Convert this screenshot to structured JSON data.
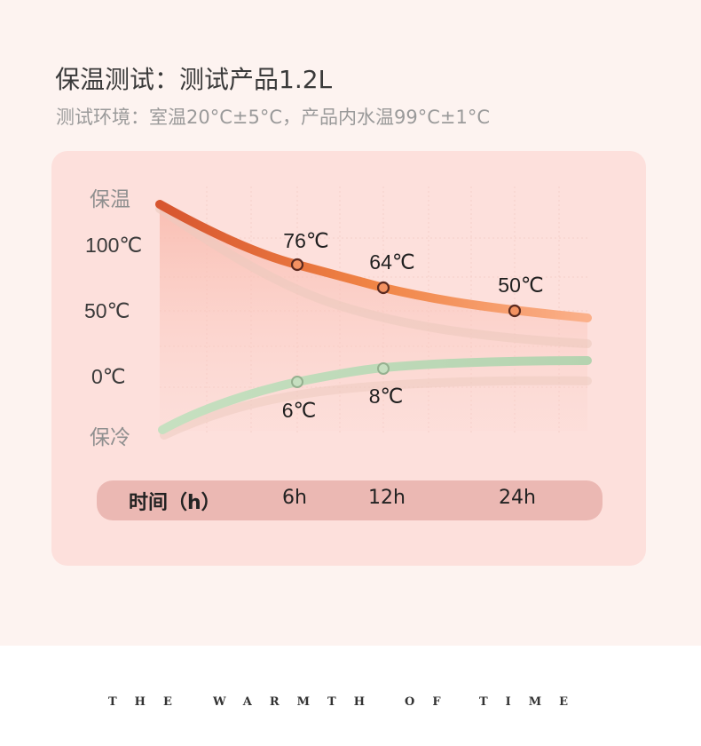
{
  "title": "保温测试：测试产品1.2L",
  "subtitle": "测试环境：室温20°C±5°C，产品内水温99°C±1°C",
  "chart_data": {
    "type": "line",
    "x": [
      0,
      6,
      12,
      24
    ],
    "y_tick_labels": [
      "100℃",
      "50℃",
      "0℃"
    ],
    "side_labels": {
      "top": "保温",
      "bottom": "保冷"
    },
    "x_axis": {
      "label": "时间（h）",
      "ticks": [
        "6h",
        "12h",
        "24h"
      ]
    },
    "series": [
      {
        "role": "hot",
        "color": "#e8683a",
        "points": [
          {
            "x": 6,
            "y": 76,
            "label": "76℃"
          },
          {
            "x": 12,
            "y": 64,
            "label": "64℃"
          },
          {
            "x": 24,
            "y": 50,
            "label": "50℃"
          }
        ]
      },
      {
        "role": "cold",
        "color": "#b9d6b4",
        "points": [
          {
            "x": 6,
            "y": 6,
            "label": "6℃"
          },
          {
            "x": 12,
            "y": 8,
            "label": "8℃"
          }
        ]
      }
    ]
  },
  "footer": {
    "motto": [
      "THE",
      "WARMTH",
      "OF",
      "TIME"
    ]
  }
}
